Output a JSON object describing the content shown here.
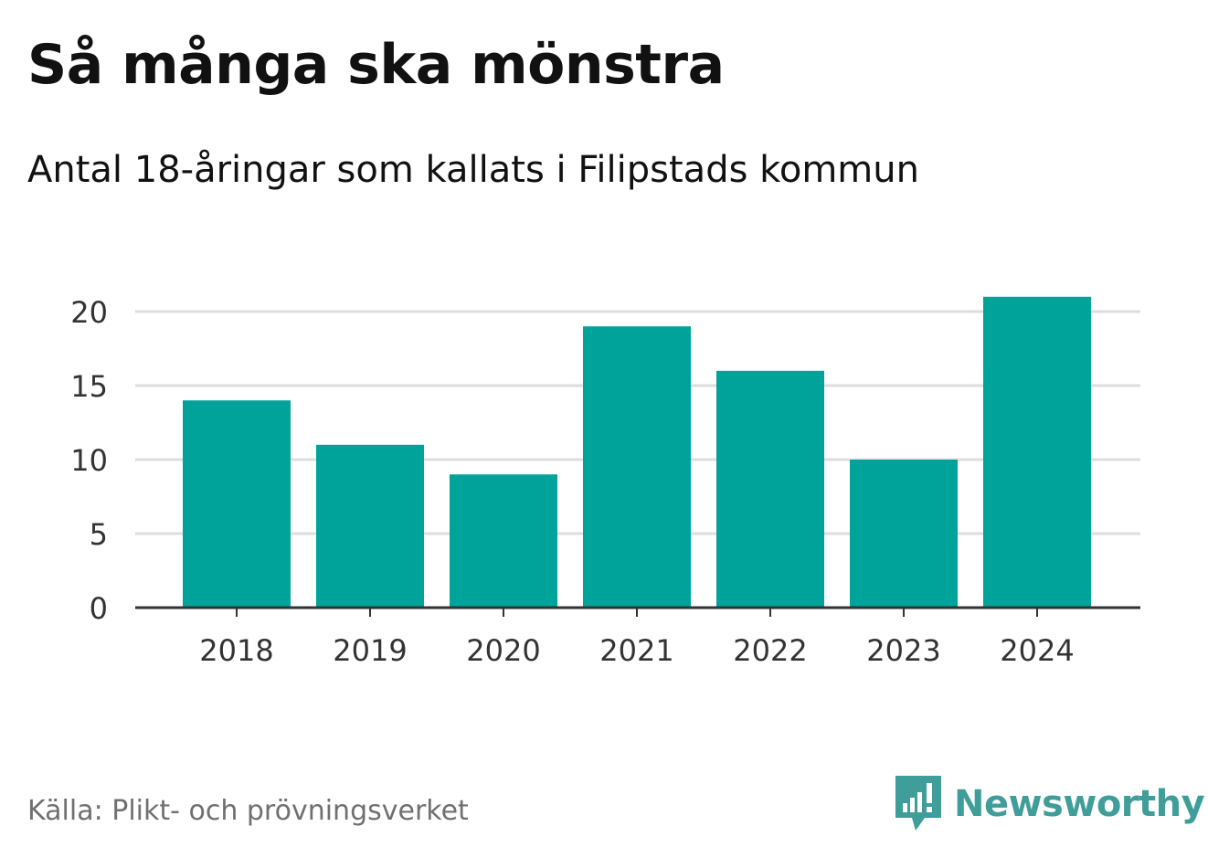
{
  "header": {
    "title": "Så många ska mönstra",
    "subtitle": "Antal 18-åringar som kallats i Filipstads kommun"
  },
  "footer": {
    "source": "Källa: Plikt- och prövningsverket",
    "brand": "Newsworthy",
    "brand_icon": "newsworthy-logo-icon"
  },
  "colors": {
    "bar": "#00a39a",
    "grid": "#dddddd",
    "axis": "#333333",
    "tick_text": "#333333",
    "brand": "#3f9e9a",
    "source_text": "#707070"
  },
  "chart_data": {
    "type": "bar",
    "title": "Så många ska mönstra",
    "subtitle": "Antal 18-åringar som kallats i Filipstads kommun",
    "categories": [
      "2018",
      "2019",
      "2020",
      "2021",
      "2022",
      "2023",
      "2024"
    ],
    "values": [
      14,
      11,
      9,
      19,
      16,
      10,
      21
    ],
    "xlabel": "",
    "ylabel": "",
    "ylim": [
      0,
      20
    ],
    "yticks": [
      0,
      5,
      10,
      15,
      20
    ],
    "grid": true,
    "legend": "none"
  }
}
